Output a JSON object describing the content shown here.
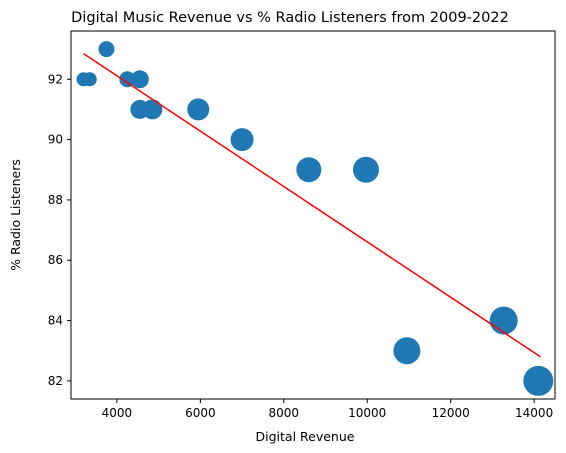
{
  "chart_data": {
    "type": "scatter",
    "title": "Digital Music Revenue vs % Radio Listeners from 2009-2022",
    "xlabel": "Digital Revenue",
    "ylabel": "% Radio Listeners",
    "xlim": [
      2900,
      14500
    ],
    "ylim": [
      81.4,
      93.6
    ],
    "xticks": [
      4000,
      6000,
      8000,
      10000,
      12000,
      14000
    ],
    "yticks": [
      82,
      84,
      86,
      88,
      90,
      92
    ],
    "grid": false,
    "marker_color": "#1f77b4",
    "trendline_color": "#ff0000",
    "points": [
      {
        "x": 3200,
        "y": 92,
        "size": 7
      },
      {
        "x": 3350,
        "y": 92,
        "size": 7
      },
      {
        "x": 3750,
        "y": 93,
        "size": 8
      },
      {
        "x": 4250,
        "y": 92,
        "size": 8
      },
      {
        "x": 4550,
        "y": 92,
        "size": 9
      },
      {
        "x": 4550,
        "y": 91,
        "size": 9.5
      },
      {
        "x": 4850,
        "y": 91,
        "size": 10
      },
      {
        "x": 5950,
        "y": 91,
        "size": 11
      },
      {
        "x": 7000,
        "y": 90,
        "size": 11.5
      },
      {
        "x": 8600,
        "y": 89,
        "size": 12.5
      },
      {
        "x": 9970,
        "y": 89,
        "size": 13
      },
      {
        "x": 10950,
        "y": 83,
        "size": 13.5
      },
      {
        "x": 13270,
        "y": 84,
        "size": 14
      },
      {
        "x": 14100,
        "y": 82,
        "size": 15
      }
    ],
    "trendline": {
      "x": [
        3200,
        14150
      ],
      "y": [
        92.85,
        82.8
      ]
    }
  }
}
